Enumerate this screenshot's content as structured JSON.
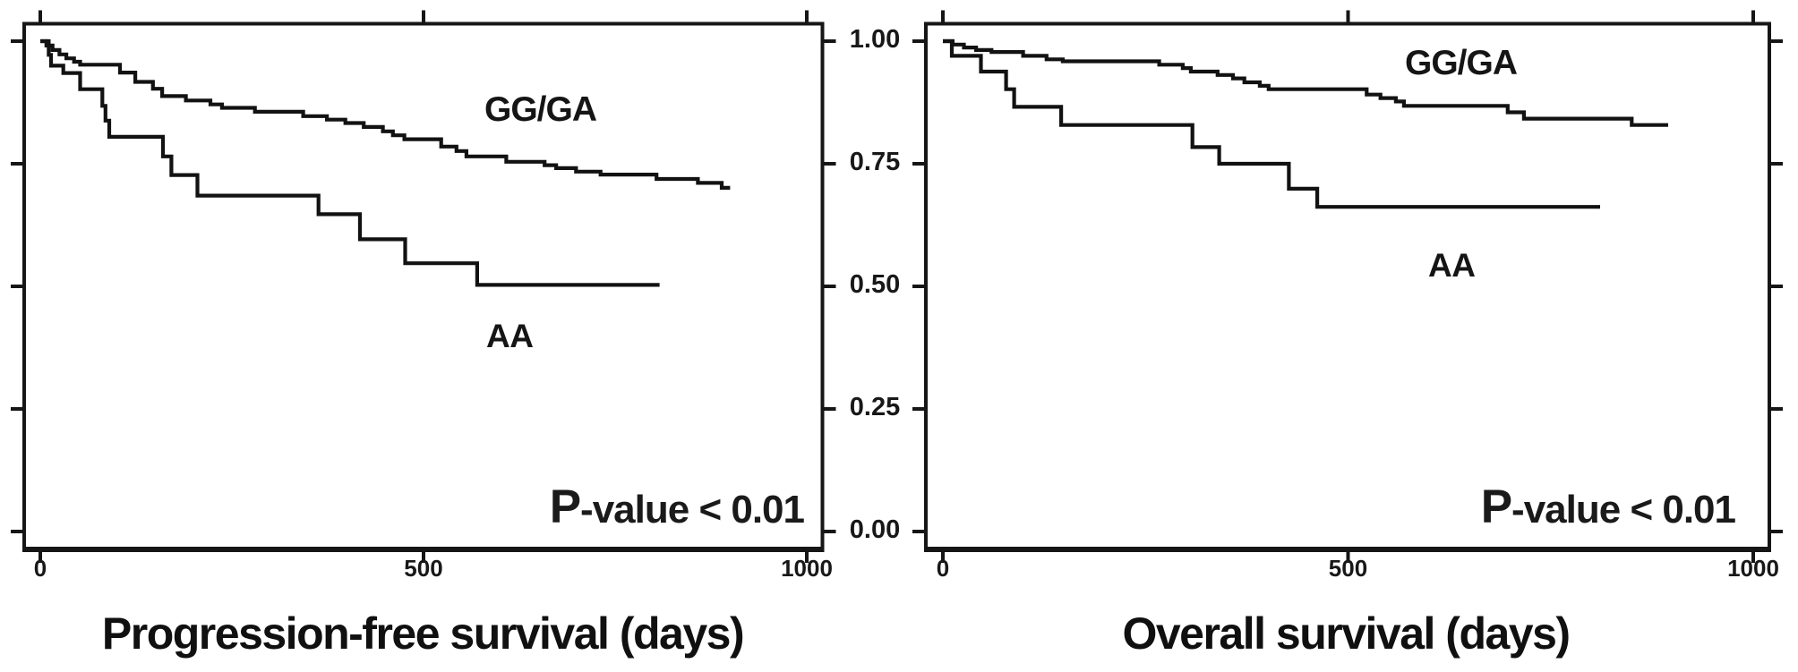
{
  "figure": {
    "y_axis": {
      "tick_labels": [
        "1.00",
        "0.75",
        "0.50",
        "0.25",
        "0.00"
      ],
      "values": [
        1.0,
        0.75,
        0.5,
        0.25,
        0.0
      ],
      "range": [
        0,
        1
      ]
    }
  },
  "chart_data": [
    {
      "type": "line",
      "subtype": "kaplan-meier-step",
      "title": "",
      "xlabel": "Progression-free survival (days)",
      "ylabel": "",
      "x_axis": {
        "tick_labels": [
          "0",
          "500",
          "1000"
        ],
        "values": [
          0,
          500,
          1000
        ],
        "range": [
          0,
          1000
        ]
      },
      "ylim": [
        0,
        1
      ],
      "grid": false,
      "legend_position": "inline-labels",
      "annotation": {
        "prefix": "P",
        "text": "-value < 0.01"
      },
      "series": [
        {
          "name": "GG/GA",
          "points": [
            [
              0,
              1.0
            ],
            [
              8,
              0.991
            ],
            [
              16,
              0.982
            ],
            [
              25,
              0.973
            ],
            [
              34,
              0.965
            ],
            [
              44,
              0.958
            ],
            [
              52,
              0.952
            ],
            [
              104,
              0.936
            ],
            [
              124,
              0.917
            ],
            [
              147,
              0.903
            ],
            [
              159,
              0.888
            ],
            [
              190,
              0.879
            ],
            [
              222,
              0.871
            ],
            [
              237,
              0.864
            ],
            [
              280,
              0.856
            ],
            [
              343,
              0.847
            ],
            [
              374,
              0.84
            ],
            [
              398,
              0.833
            ],
            [
              422,
              0.825
            ],
            [
              447,
              0.816
            ],
            [
              460,
              0.808
            ],
            [
              475,
              0.8
            ],
            [
              523,
              0.785
            ],
            [
              543,
              0.776
            ],
            [
              556,
              0.765
            ],
            [
              608,
              0.754
            ],
            [
              658,
              0.747
            ],
            [
              673,
              0.741
            ],
            [
              699,
              0.734
            ],
            [
              731,
              0.728
            ],
            [
              804,
              0.719
            ],
            [
              858,
              0.711
            ],
            [
              889,
              0.701
            ]
          ],
          "end_day": 900
        },
        {
          "name": "AA",
          "points": [
            [
              0,
              1.0
            ],
            [
              11,
              0.972
            ],
            [
              14,
              0.95
            ],
            [
              30,
              0.935
            ],
            [
              52,
              0.902
            ],
            [
              81,
              0.868
            ],
            [
              85,
              0.838
            ],
            [
              90,
              0.805
            ],
            [
              160,
              0.765
            ],
            [
              171,
              0.727
            ],
            [
              205,
              0.685
            ],
            [
              363,
              0.647
            ],
            [
              417,
              0.596
            ],
            [
              476,
              0.547
            ],
            [
              570,
              0.503
            ]
          ],
          "end_day": 808
        }
      ]
    },
    {
      "type": "line",
      "subtype": "kaplan-meier-step",
      "title": "",
      "xlabel": "Overall survival (days)",
      "ylabel": "",
      "x_axis": {
        "tick_labels": [
          "0",
          "500",
          "1000"
        ],
        "values": [
          0,
          500,
          1000
        ],
        "range": [
          0,
          1000
        ]
      },
      "ylim": [
        0,
        1
      ],
      "grid": false,
      "legend_position": "inline-labels",
      "annotation": {
        "prefix": "P",
        "text": "-value < 0.01"
      },
      "series": [
        {
          "name": "GG/GA",
          "points": [
            [
              0,
              1.0
            ],
            [
              12,
              0.993
            ],
            [
              26,
              0.987
            ],
            [
              41,
              0.982
            ],
            [
              60,
              0.978
            ],
            [
              99,
              0.97
            ],
            [
              128,
              0.963
            ],
            [
              148,
              0.959
            ],
            [
              267,
              0.952
            ],
            [
              296,
              0.945
            ],
            [
              306,
              0.938
            ],
            [
              339,
              0.931
            ],
            [
              358,
              0.924
            ],
            [
              372,
              0.916
            ],
            [
              391,
              0.909
            ],
            [
              402,
              0.902
            ],
            [
              523,
              0.891
            ],
            [
              540,
              0.884
            ],
            [
              559,
              0.877
            ],
            [
              569,
              0.868
            ],
            [
              697,
              0.855
            ],
            [
              717,
              0.842
            ],
            [
              850,
              0.829
            ]
          ],
          "end_day": 895
        },
        {
          "name": "AA",
          "points": [
            [
              0,
              1.0
            ],
            [
              11,
              0.97
            ],
            [
              47,
              0.938
            ],
            [
              78,
              0.902
            ],
            [
              88,
              0.866
            ],
            [
              146,
              0.829
            ],
            [
              308,
              0.784
            ],
            [
              341,
              0.75
            ],
            [
              427,
              0.699
            ],
            [
              462,
              0.662
            ]
          ],
          "end_day": 811
        }
      ]
    }
  ]
}
